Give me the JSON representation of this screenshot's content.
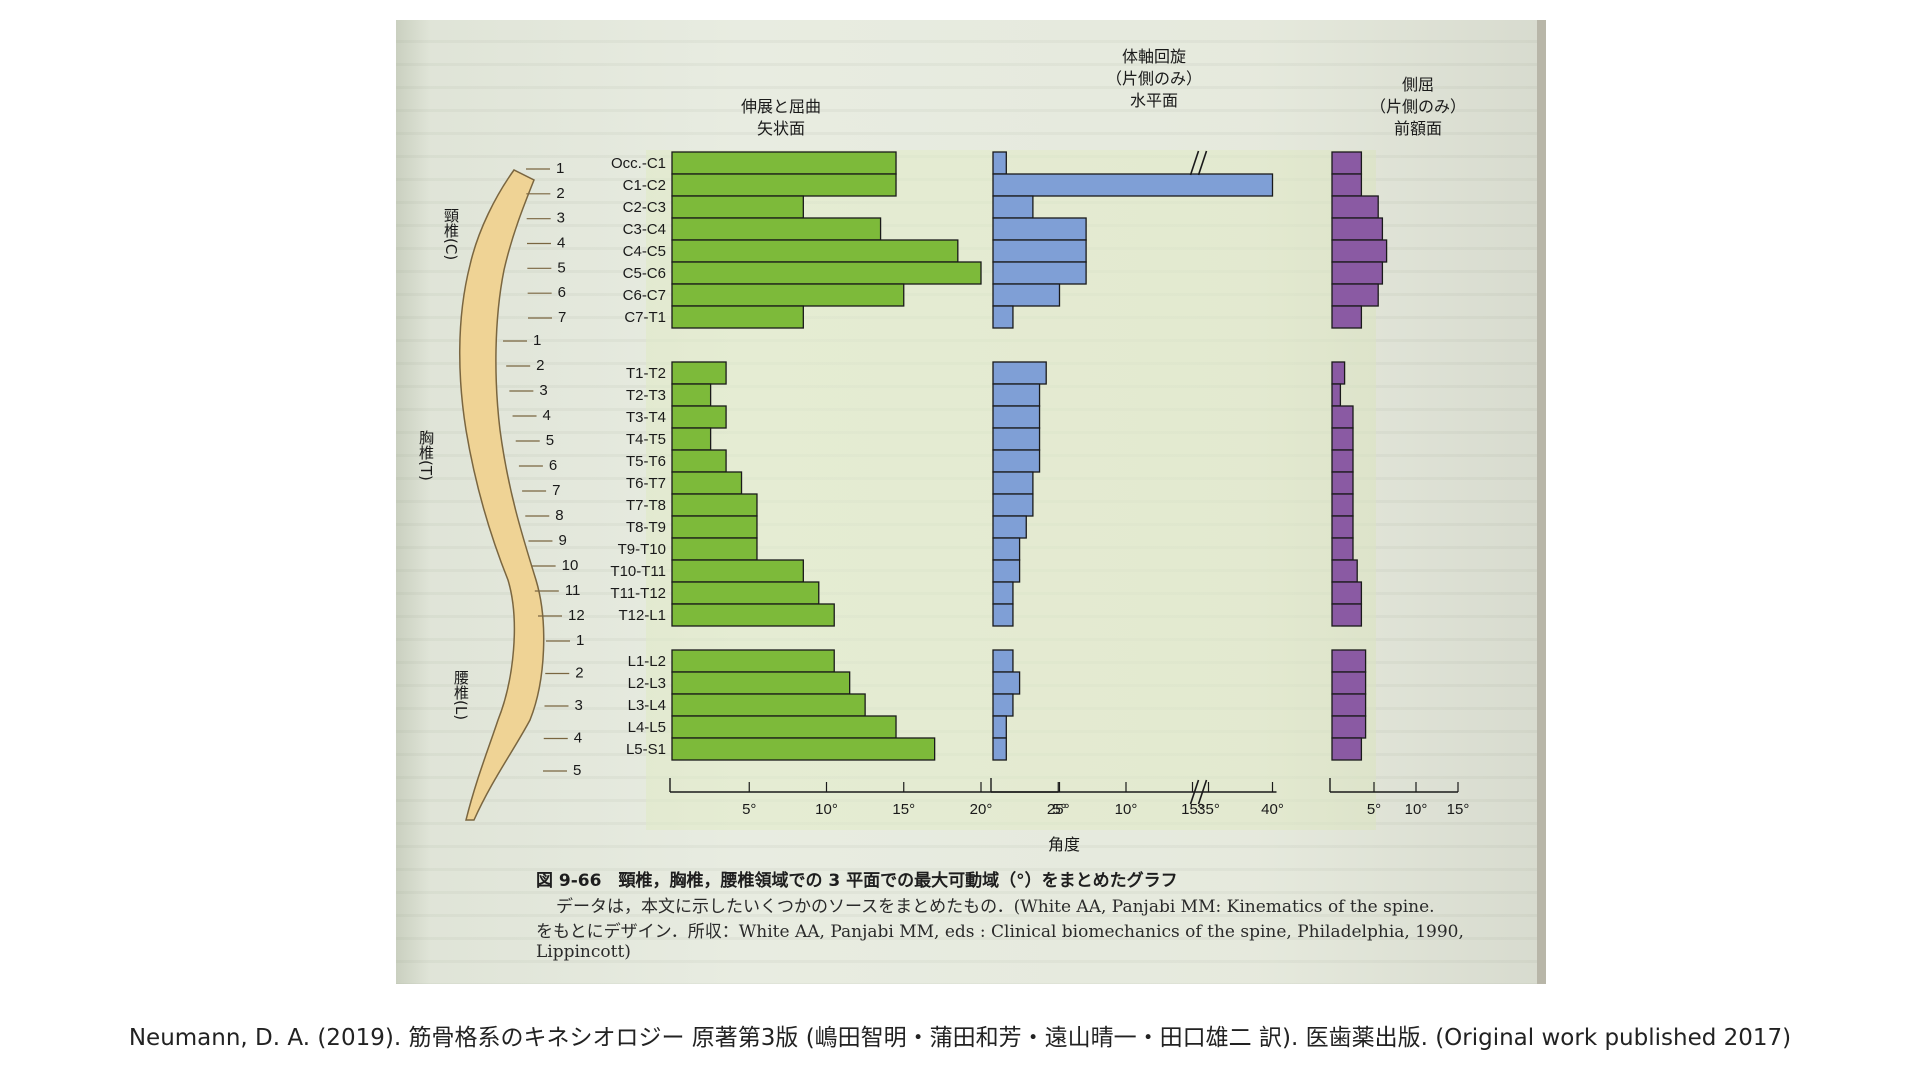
{
  "figure": {
    "caption_title": "図 9-66　頸椎，胸椎，腰椎領域での 3 平面での最大可動域（°）をまとめたグラフ",
    "caption_line1": "データは，本文に示したいくつかのソースをまとめたもの．(White AA, Panjabi MM: Kinematics of the spine.",
    "caption_line2": "をもとにデザイン．所収：White AA, Panjabi MM, eds : Clinical biomechanics of the spine, Philadelphia, 1990,",
    "caption_line3": "Lippincott)",
    "x_axis_label": "角度"
  },
  "spine": {
    "cervical_label": "頸椎(C)",
    "thoracic_label": "胸椎(T)",
    "lumbar_label": "腰椎(L)",
    "cervical_numbers": [
      "1",
      "2",
      "3",
      "4",
      "5",
      "6",
      "7"
    ],
    "thoracic_numbers": [
      "1",
      "2",
      "3",
      "4",
      "5",
      "6",
      "7",
      "8",
      "9",
      "10",
      "11",
      "12"
    ],
    "lumbar_numbers": [
      "1",
      "2",
      "3",
      "4",
      "5"
    ]
  },
  "chart_data": [
    {
      "type": "bar",
      "orientation": "horizontal",
      "title": "伸展と屈曲\n矢状面",
      "categories": [
        "Occ.-C1",
        "C1-C2",
        "C2-C3",
        "C3-C4",
        "C4-C5",
        "C5-C6",
        "C6-C7",
        "C7-T1",
        "T1-T2",
        "T2-T3",
        "T3-T4",
        "T4-T5",
        "T5-T6",
        "T6-T7",
        "T7-T8",
        "T8-T9",
        "T9-T10",
        "T10-T11",
        "T11-T12",
        "T12-L1",
        "L1-L2",
        "L2-L3",
        "L3-L4",
        "L4-L5",
        "L5-S1"
      ],
      "values": [
        14.5,
        14.5,
        8.5,
        13.5,
        18.5,
        20,
        15,
        8.5,
        3.5,
        2.5,
        3.5,
        2.5,
        3.5,
        4.5,
        5.5,
        5.5,
        5.5,
        8.5,
        9.5,
        10.5,
        10.5,
        11.5,
        12.5,
        14.5,
        17
      ],
      "xlim": [
        0,
        25
      ],
      "ticks": [
        "5°",
        "10°",
        "15°",
        "20°",
        "25°"
      ],
      "color": "#7dba3a"
    },
    {
      "type": "bar",
      "orientation": "horizontal",
      "title": "体軸回旋\n（片側のみ）\n水平面",
      "categories": [
        "Occ.-C1",
        "C1-C2",
        "C2-C3",
        "C3-C4",
        "C4-C5",
        "C5-C6",
        "C6-C7",
        "C7-T1",
        "T1-T2",
        "T2-T3",
        "T3-T4",
        "T4-T5",
        "T5-T6",
        "T6-T7",
        "T7-T8",
        "T8-T9",
        "T9-T10",
        "T10-T11",
        "T11-T12",
        "T12-L1",
        "L1-L2",
        "L2-L3",
        "L3-L4",
        "L4-L5",
        "L5-S1"
      ],
      "values": [
        1,
        40,
        3,
        7,
        7,
        7,
        5,
        1.5,
        4,
        3.5,
        3.5,
        3.5,
        3.5,
        3,
        3,
        2.5,
        2,
        2,
        1.5,
        1.5,
        1.5,
        2,
        1.5,
        1,
        1
      ],
      "xlim": [
        0,
        40
      ],
      "axis_break": [
        15,
        35
      ],
      "ticks": [
        "5°",
        "10°",
        "15°",
        "35°",
        "40°"
      ],
      "color": "#7f9fd6"
    },
    {
      "type": "bar",
      "orientation": "horizontal",
      "title": "側屈\n（片側のみ）\n前額面",
      "categories": [
        "Occ.-C1",
        "C1-C2",
        "C2-C3",
        "C3-C4",
        "C4-C5",
        "C5-C6",
        "C6-C7",
        "C7-T1",
        "T1-T2",
        "T2-T3",
        "T3-T4",
        "T4-T5",
        "T5-T6",
        "T6-T7",
        "T7-T8",
        "T8-T9",
        "T9-T10",
        "T10-T11",
        "T11-T12",
        "T12-L1",
        "L1-L2",
        "L2-L3",
        "L3-L4",
        "L4-L5",
        "L5-S1"
      ],
      "values": [
        3.5,
        3.5,
        5.5,
        6,
        6.5,
        6,
        5.5,
        3.5,
        1.5,
        1,
        2.5,
        2.5,
        2.5,
        2.5,
        2.5,
        2.5,
        2.5,
        3,
        3.5,
        3.5,
        4,
        4,
        4,
        4,
        3.5
      ],
      "xlim": [
        0,
        15
      ],
      "ticks": [
        "5°",
        "10°",
        "15°"
      ],
      "color": "#8a5aa3"
    }
  ],
  "citation": "Neumann, D. A. (2019). 筋骨格系のキネシオロジー 原著第3版 (嶋田智明・蒲田和芳・遠山晴一・田口雄二 訳). 医歯薬出版. (Original work published 2017)"
}
